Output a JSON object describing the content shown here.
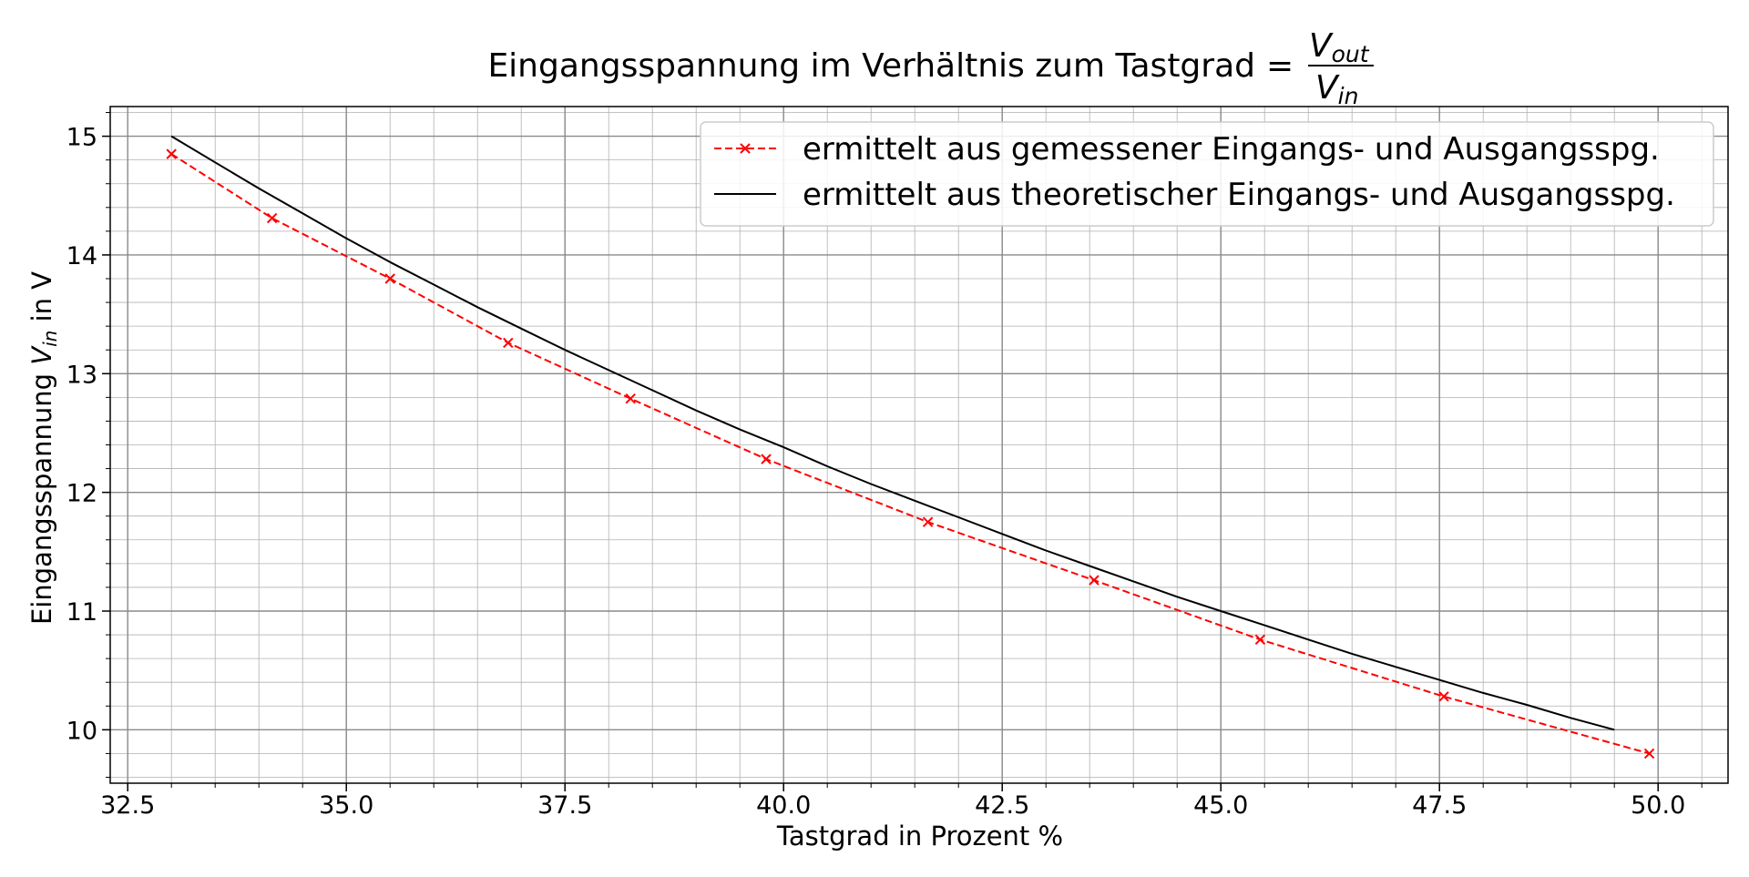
{
  "chart_data": {
    "type": "line",
    "title": "Eingangsspannung im Verhältnis zum Tastgrad",
    "title_formula": {
      "prefix": "=",
      "numerator": "V",
      "numerator_sub": "out",
      "denominator": "V",
      "denominator_sub": "in"
    },
    "xlabel": "Tastgrad in Prozent %",
    "ylabel": {
      "prefix": "Eingangsspannung",
      "var": "V",
      "var_sub": "in",
      "suffix": "in V"
    },
    "xlim": [
      32.3,
      50.8
    ],
    "ylim": [
      9.55,
      15.25
    ],
    "xticks": [
      "32.5",
      "35.0",
      "37.5",
      "40.0",
      "42.5",
      "45.0",
      "47.5",
      "50.0"
    ],
    "yticks": [
      "10",
      "11",
      "12",
      "13",
      "14",
      "15"
    ],
    "grid": true,
    "minor_grid": true,
    "legend_position": "top-right",
    "series": [
      {
        "name": "ermittelt aus gemessener Eingangs- und Ausgangsspg.",
        "color": "#ff0000",
        "style": "dashed",
        "marker": "x",
        "x": [
          33.0,
          34.15,
          35.5,
          36.85,
          38.25,
          39.8,
          41.65,
          43.55,
          45.45,
          47.55,
          49.9
        ],
        "y": [
          14.85,
          14.31,
          13.8,
          13.26,
          12.79,
          12.28,
          11.75,
          11.26,
          10.76,
          10.28,
          9.8
        ]
      },
      {
        "name": "ermittelt aus theoretischer Eingangs- und Ausgangsspg.",
        "color": "#000000",
        "style": "solid",
        "marker": "none",
        "x": [
          33.0,
          33.5,
          34.0,
          34.5,
          35.0,
          35.5,
          36.0,
          36.5,
          37.0,
          37.5,
          38.0,
          38.5,
          39.0,
          39.5,
          40.0,
          40.5,
          41.0,
          41.5,
          42.0,
          42.5,
          43.0,
          43.5,
          44.0,
          44.5,
          45.0,
          45.5,
          46.0,
          46.5,
          47.0,
          47.5,
          48.0,
          48.5,
          49.0,
          49.5
        ],
        "y": [
          15.0,
          14.78,
          14.56,
          14.35,
          14.14,
          13.94,
          13.75,
          13.56,
          13.38,
          13.2,
          13.03,
          12.86,
          12.69,
          12.53,
          12.38,
          12.22,
          12.07,
          11.93,
          11.79,
          11.65,
          11.51,
          11.38,
          11.25,
          11.12,
          11.0,
          10.88,
          10.76,
          10.64,
          10.53,
          10.42,
          10.31,
          10.21,
          10.1,
          10.0
        ]
      }
    ]
  }
}
